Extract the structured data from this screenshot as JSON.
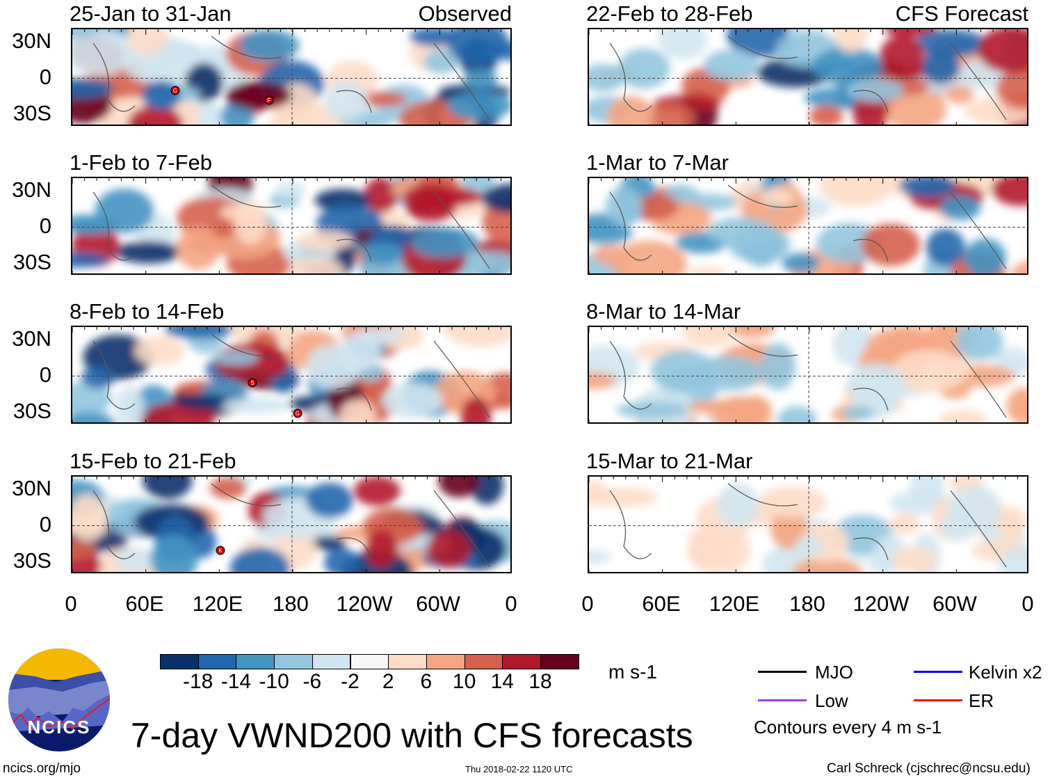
{
  "header": {
    "observed_label": "Observed",
    "forecast_label": "CFS Forecast"
  },
  "panels": {
    "left": [
      {
        "title": "25-Jan to 31-Jan"
      },
      {
        "title": "1-Feb to 7-Feb"
      },
      {
        "title": "8-Feb to 14-Feb"
      },
      {
        "title": "15-Feb to 21-Feb"
      }
    ],
    "right": [
      {
        "title": "22-Feb to 28-Feb"
      },
      {
        "title": "1-Mar to 7-Mar"
      },
      {
        "title": "8-Mar to 14-Mar"
      },
      {
        "title": "15-Mar to 21-Mar"
      }
    ]
  },
  "axes": {
    "lat_labels": [
      "30N",
      "0",
      "30S"
    ],
    "lon_labels": [
      "0",
      "60E",
      "120E",
      "180",
      "120W",
      "60W",
      "0"
    ]
  },
  "cyclones": [
    {
      "panel": 0,
      "letter": "G"
    },
    {
      "panel": 0,
      "letter": "F"
    },
    {
      "panel": 2,
      "letter": "S"
    },
    {
      "panel": 2,
      "letter": "G"
    },
    {
      "panel": 3,
      "letter": "K"
    }
  ],
  "chart_data": {
    "type": "heatmap",
    "title": "7-day VWND200 with CFS forecasts",
    "variable": "VWND200",
    "units": "m s-1",
    "lat_range": [
      -40,
      40
    ],
    "lon_range": [
      0,
      360
    ],
    "colorbar": {
      "levels": [
        -18,
        -14,
        -10,
        -6,
        -2,
        2,
        6,
        10,
        14,
        18
      ],
      "level_labels": [
        "-18",
        "-14",
        "-10",
        "-6",
        "-2",
        "2",
        "6",
        "10",
        "14",
        "18"
      ],
      "colors": [
        "#08306b",
        "#2166ac",
        "#4393c3",
        "#92c5de",
        "#d1e5f0",
        "#f7f7f7",
        "#fddbc7",
        "#f4a582",
        "#d6604d",
        "#b2182b",
        "#67001f"
      ]
    },
    "legend": [
      {
        "name": "MJO",
        "color": "#000000"
      },
      {
        "name": "Kelvin x2",
        "color": "#0000ff"
      },
      {
        "name": "Low",
        "color": "#a040e0"
      },
      {
        "name": "ER",
        "color": "#ff0000"
      }
    ],
    "contour_note": "Contours every 4 m s-1"
  },
  "footer": {
    "logo_text": "NCICS",
    "url": "ncics.org/mjo",
    "timestamp": "Thu 2018-02-22 1120 UTC",
    "author": "Carl Schreck (cjschrec@ncsu.edu)"
  }
}
